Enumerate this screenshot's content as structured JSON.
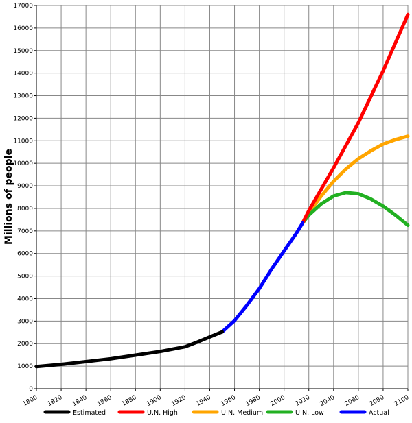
{
  "chart_data": {
    "type": "line",
    "title": "",
    "xlabel": "",
    "ylabel": "Millions of people",
    "xlim": [
      1800,
      2100
    ],
    "ylim": [
      0,
      17000
    ],
    "x_ticks": [
      1800,
      1820,
      1840,
      1860,
      1880,
      1900,
      1920,
      1940,
      1960,
      1980,
      2000,
      2020,
      2040,
      2060,
      2080,
      2100
    ],
    "y_ticks": [
      0,
      1000,
      2000,
      3000,
      4000,
      5000,
      6000,
      7000,
      8000,
      9000,
      10000,
      11000,
      12000,
      13000,
      14000,
      15000,
      16000,
      17000
    ],
    "grid": true,
    "legend_placement": "bottom",
    "series": [
      {
        "name": "Estimated",
        "color": "#000000",
        "x": [
          1800,
          1820,
          1840,
          1860,
          1880,
          1900,
          1920,
          1930,
          1940,
          1950
        ],
        "y": [
          980,
          1080,
          1200,
          1330,
          1490,
          1650,
          1860,
          2070,
          2300,
          2520
        ]
      },
      {
        "name": "U.N. High",
        "color": "#ff0000",
        "x": [
          2015,
          2020,
          2040,
          2060,
          2080,
          2100
        ],
        "y": [
          7350,
          7900,
          9800,
          11800,
          14100,
          16600
        ]
      },
      {
        "name": "U.N. Medium",
        "color": "#ffa500",
        "x": [
          2015,
          2020,
          2030,
          2040,
          2050,
          2060,
          2070,
          2080,
          2090,
          2100
        ],
        "y": [
          7350,
          7800,
          8550,
          9200,
          9750,
          10200,
          10550,
          10850,
          11050,
          11200
        ]
      },
      {
        "name": "U.N. Low",
        "color": "#22b022",
        "x": [
          2015,
          2020,
          2030,
          2040,
          2050,
          2060,
          2070,
          2080,
          2090,
          2100
        ],
        "y": [
          7350,
          7700,
          8200,
          8550,
          8700,
          8650,
          8420,
          8100,
          7700,
          7250
        ]
      },
      {
        "name": "Actual",
        "color": "#0000ff",
        "x": [
          1950,
          1960,
          1970,
          1980,
          1990,
          2000,
          2010,
          2015
        ],
        "y": [
          2520,
          3020,
          3700,
          4440,
          5310,
          6110,
          6900,
          7350
        ]
      }
    ]
  }
}
